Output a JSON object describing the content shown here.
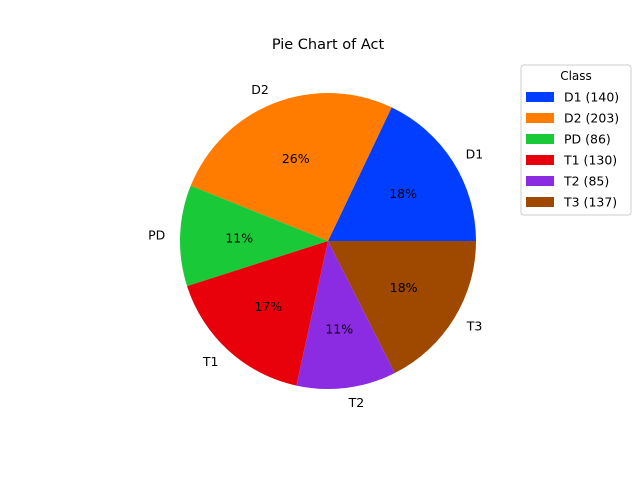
{
  "chart_data": {
    "type": "pie",
    "title": "Pie Chart of Act",
    "legend": {
      "title": "Class",
      "placement": "upper-right-outside"
    },
    "slices": [
      {
        "label": "D1",
        "value": 140,
        "percent_label": "18%",
        "legend_label": "D1 (140)",
        "color": "#023EFF"
      },
      {
        "label": "D2",
        "value": 203,
        "percent_label": "26%",
        "legend_label": "D2 (203)",
        "color": "#FF7C00"
      },
      {
        "label": "PD",
        "value": 86,
        "percent_label": "11%",
        "legend_label": "PD (86)",
        "color": "#1AC938"
      },
      {
        "label": "T1",
        "value": 130,
        "percent_label": "17%",
        "legend_label": "T1 (130)",
        "color": "#E8000B"
      },
      {
        "label": "T2",
        "value": 85,
        "percent_label": "11%",
        "legend_label": "T2 (85)",
        "color": "#8B2BE2"
      },
      {
        "label": "T3",
        "value": 137,
        "percent_label": "18%",
        "legend_label": "T3 (137)",
        "color": "#9F4800"
      }
    ]
  }
}
